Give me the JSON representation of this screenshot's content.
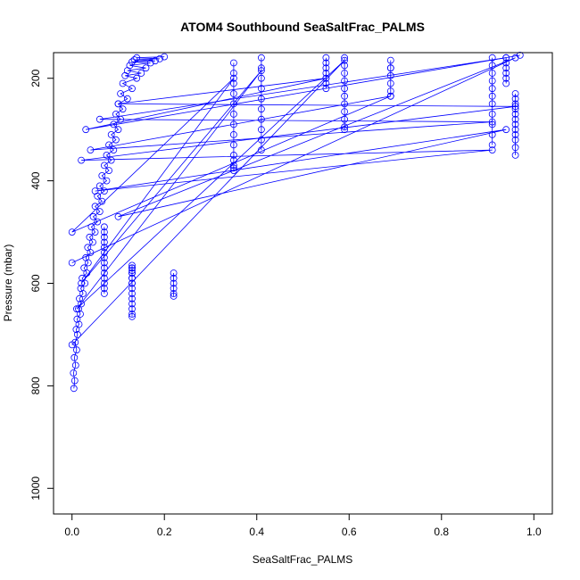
{
  "chart_data": {
    "type": "scatter",
    "title": "ATOM4 Southbound SeaSaltFrac_PALMS",
    "xlabel": "SeaSaltFrac_PALMS",
    "ylabel": "Pressure (mbar)",
    "xlim": [
      -0.04,
      1.04
    ],
    "ylim": [
      1050,
      150
    ],
    "y_reversed": true,
    "x_ticks": [
      "0.0",
      "0.2",
      "0.4",
      "0.6",
      "0.8",
      "1.0"
    ],
    "y_ticks": [
      "200",
      "400",
      "600",
      "800",
      "1000"
    ],
    "grid": false,
    "legend": "none",
    "series_color": "#0000ff",
    "marker": "open-circle",
    "connected": true,
    "series": [
      {
        "x": [
          0.004,
          0.006,
          0.003,
          0.008,
          0.005,
          0.01,
          0.007,
          0.012,
          0.009,
          0.015,
          0.011,
          0.018,
          0.014,
          0.02,
          0.016,
          0.024,
          0.019,
          0.028,
          0.022,
          0.032,
          0.026,
          0.035,
          0.03,
          0.04,
          0.034,
          0.045,
          0.038,
          0.05,
          0.042,
          0.055,
          0.046,
          0.06,
          0.05,
          0.065,
          0.055,
          0.07,
          0.06,
          0.075,
          0.065,
          0.08,
          0.07,
          0.085,
          0.075,
          0.09,
          0.08,
          0.095,
          0.085,
          0.1,
          0.09,
          0.105,
          0.095,
          0.11,
          0.1,
          0.12,
          0.105,
          0.13,
          0.11,
          0.14,
          0.115,
          0.15,
          0.12,
          0.16,
          0.125,
          0.17,
          0.13,
          0.18,
          0.135,
          0.19,
          0.14,
          0.2
        ],
        "y": [
          805,
          790,
          775,
          760,
          745,
          730,
          715,
          700,
          690,
          680,
          670,
          660,
          650,
          640,
          630,
          620,
          610,
          600,
          590,
          580,
          570,
          560,
          550,
          540,
          530,
          520,
          510,
          500,
          490,
          480,
          470,
          460,
          450,
          440,
          430,
          420,
          410,
          400,
          390,
          380,
          370,
          360,
          350,
          340,
          330,
          320,
          310,
          300,
          290,
          280,
          270,
          260,
          250,
          240,
          230,
          220,
          210,
          200,
          195,
          190,
          185,
          180,
          175,
          170,
          168,
          166,
          164,
          162,
          160,
          158
        ]
      },
      {
        "x": [
          0.07,
          0.07,
          0.07,
          0.07,
          0.07,
          0.07,
          0.07,
          0.07,
          0.07,
          0.07,
          0.07,
          0.07,
          0.07,
          0.07
        ],
        "y": [
          490,
          500,
          510,
          520,
          530,
          540,
          550,
          560,
          570,
          580,
          590,
          600,
          610,
          620
        ]
      },
      {
        "x": [
          0.13,
          0.13,
          0.13,
          0.13,
          0.13,
          0.13,
          0.13,
          0.13,
          0.13,
          0.13,
          0.13,
          0.13,
          0.13,
          0.13,
          0.13,
          0.13,
          0.13
        ],
        "y": [
          570,
          580,
          590,
          600,
          610,
          620,
          630,
          640,
          650,
          660,
          665,
          600,
          590,
          580,
          575,
          570,
          565
        ]
      },
      {
        "x": [
          0.22,
          0.22,
          0.22,
          0.22,
          0.22,
          0.22
        ],
        "y": [
          580,
          590,
          600,
          610,
          620,
          625
        ]
      },
      {
        "x": [
          0.35,
          0.35,
          0.35,
          0.35,
          0.35,
          0.35,
          0.35,
          0.35,
          0.35,
          0.35,
          0.35,
          0.35,
          0.35,
          0.35
        ],
        "y": [
          170,
          190,
          210,
          230,
          250,
          270,
          290,
          310,
          330,
          350,
          360,
          370,
          375,
          380
        ]
      },
      {
        "x": [
          0.41,
          0.41,
          0.41,
          0.41,
          0.41,
          0.41,
          0.41,
          0.41,
          0.41,
          0.41
        ],
        "y": [
          160,
          180,
          200,
          220,
          240,
          260,
          280,
          300,
          320,
          340
        ]
      },
      {
        "x": [
          0.55,
          0.55,
          0.55,
          0.55,
          0.55,
          0.55,
          0.55
        ],
        "y": [
          160,
          170,
          180,
          190,
          200,
          210,
          220
        ]
      },
      {
        "x": [
          0.59,
          0.59,
          0.59,
          0.59,
          0.59,
          0.59,
          0.59,
          0.59,
          0.59,
          0.59,
          0.59
        ],
        "y": [
          160,
          175,
          190,
          205,
          220,
          235,
          250,
          265,
          280,
          295,
          300
        ]
      },
      {
        "x": [
          0.69,
          0.69,
          0.69,
          0.69,
          0.69,
          0.69,
          0.69
        ],
        "y": [
          165,
          180,
          195,
          210,
          225,
          235,
          180
        ]
      },
      {
        "x": [
          0.91,
          0.91,
          0.91,
          0.91,
          0.91,
          0.91,
          0.91,
          0.91,
          0.91,
          0.91,
          0.91
        ],
        "y": [
          160,
          175,
          190,
          205,
          220,
          235,
          250,
          270,
          290,
          310,
          330
        ]
      },
      {
        "x": [
          0.94,
          0.94,
          0.94,
          0.94,
          0.94,
          0.94
        ],
        "y": [
          160,
          170,
          180,
          190,
          200,
          210
        ]
      },
      {
        "x": [
          0.96,
          0.96,
          0.96,
          0.96,
          0.96,
          0.96,
          0.96,
          0.96,
          0.96,
          0.96,
          0.96,
          0.96
        ],
        "y": [
          230,
          240,
          250,
          260,
          270,
          280,
          290,
          300,
          310,
          320,
          335,
          350
        ]
      },
      {
        "x": [
          0.0,
          0.96,
          0.1,
          0.94,
          0.05,
          0.91,
          0.02,
          0.96,
          0.1,
          0.55,
          0.03,
          0.97
        ],
        "y": [
          560,
          160,
          470,
          300,
          420,
          340,
          360,
          255,
          250,
          200,
          300,
          155
        ]
      },
      {
        "x": [
          0.0,
          0.59,
          0.01,
          0.41,
          0.02,
          0.35,
          0.0,
          0.69,
          0.04,
          0.91,
          0.06,
          0.94
        ],
        "y": [
          720,
          165,
          650,
          185,
          600,
          200,
          500,
          235,
          340,
          285,
          280,
          160
        ]
      }
    ]
  }
}
